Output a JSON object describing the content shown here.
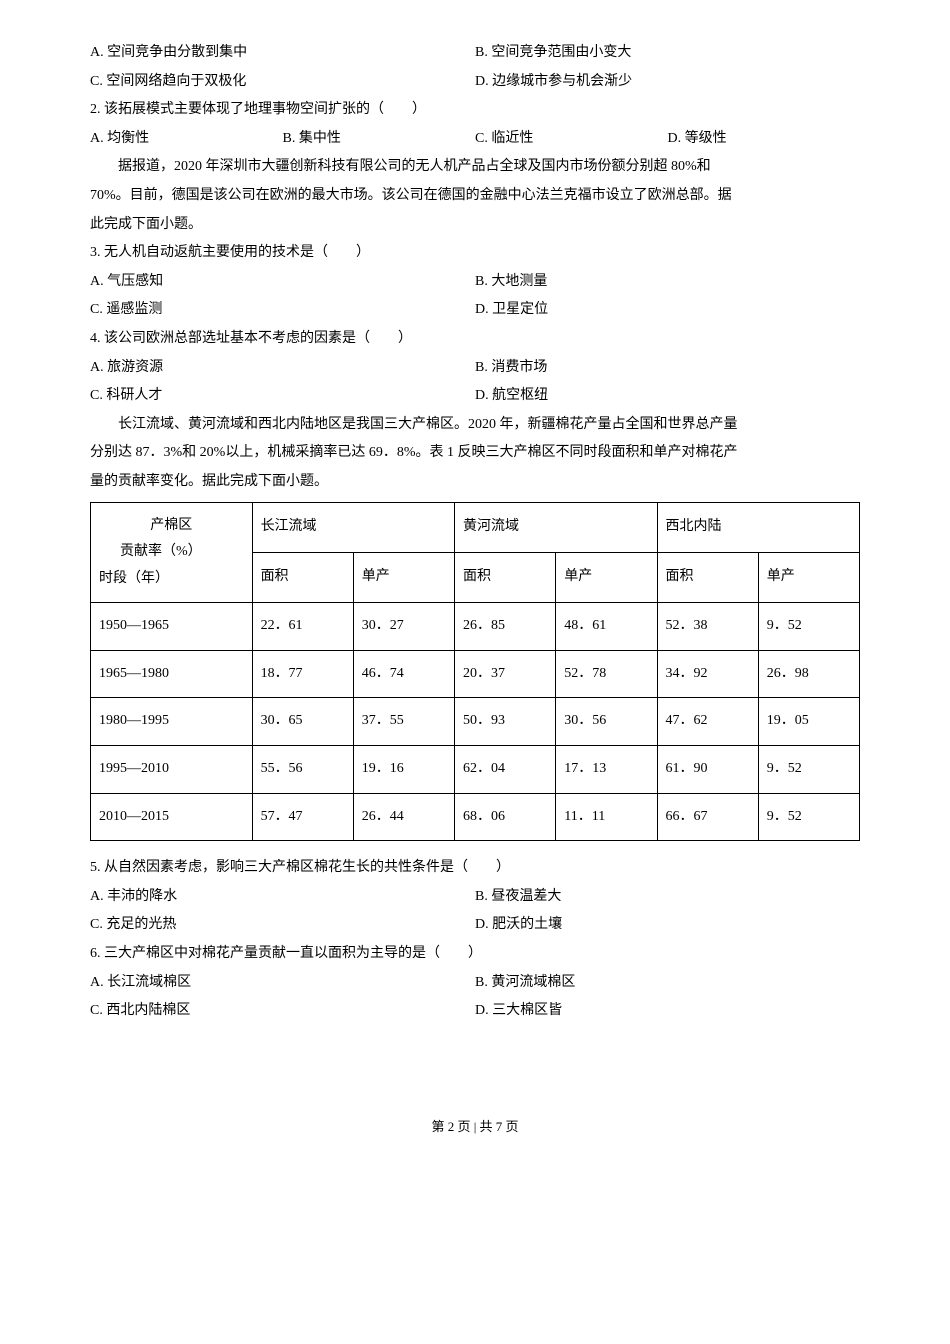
{
  "q1_options": {
    "A": "A. 空间竞争由分散到集中",
    "B": "B. 空间竞争范围由小变大",
    "C": "C. 空间网络趋向于双极化",
    "D": "D. 边缘城市参与机会渐少"
  },
  "q2": {
    "text": "2. 该拓展模式主要体现了地理事物空间扩张的（　　）",
    "A": "A. 均衡性",
    "B": "B. 集中性",
    "C": "C. 临近性",
    "D": "D. 等级性"
  },
  "passage1": {
    "line1": "据报道，2020 年深圳市大疆创新科技有限公司的无人机产品占全球及国内市场份额分别超 80%和",
    "line2": "70%。目前，德国是该公司在欧洲的最大市场。该公司在德国的金融中心法兰克福市设立了欧洲总部。据",
    "line3": "此完成下面小题。"
  },
  "q3": {
    "text": "3.  无人机自动返航主要使用的技术是（　　）",
    "A": "A.  气压感知",
    "B": "B.  大地测量",
    "C": "C.  遥感监测",
    "D": "D.  卫星定位"
  },
  "q4": {
    "text": "4.  该公司欧洲总部选址基本不考虑的因素是（　　）",
    "A": "A.  旅游资源",
    "B": "B.  消费市场",
    "C": "C.  科研人才",
    "D": "D.  航空枢纽"
  },
  "passage2": {
    "line1": "长江流域、黄河流域和西北内陆地区是我国三大产棉区。2020 年，新疆棉花产量占全国和世界总产量",
    "line2": "分别达 87．3%和 20%以上，机械采摘率已达 69．8%。表 1 反映三大产棉区不同时段面积和单产对棉花产",
    "line3": "量的贡献率变化。据此完成下面小题。"
  },
  "table": {
    "header": {
      "region_label": "产棉区",
      "contrib_label": "贡献率（%）",
      "period_label": "时段（年）",
      "r1": "长江流域",
      "r2": "黄河流域",
      "r3": "西北内陆",
      "area": "面积",
      "yield": "单产"
    },
    "rows": [
      {
        "period": "1950—1965",
        "v": [
          "22．61",
          "30．27",
          "26．85",
          "48．61",
          "52．38",
          "9．52"
        ]
      },
      {
        "period": "1965—1980",
        "v": [
          "18．77",
          "46．74",
          "20．37",
          "52．78",
          "34．92",
          "26．98"
        ]
      },
      {
        "period": "1980—1995",
        "v": [
          "30．65",
          "37．55",
          "50．93",
          "30．56",
          "47．62",
          "19．05"
        ]
      },
      {
        "period": "1995—2010",
        "v": [
          "55．56",
          "19．16",
          "62．04",
          "17．13",
          "61．90",
          "9．52"
        ]
      },
      {
        "period": "2010—2015",
        "v": [
          "57．47",
          "26．44",
          "68．06",
          "11．11",
          "66．67",
          "9．52"
        ]
      }
    ]
  },
  "q5": {
    "text": "5.  从自然因素考虑，影响三大产棉区棉花生长的共性条件是（　　）",
    "A": "A.  丰沛的降水",
    "B": "B.  昼夜温差大",
    "C": "C.  充足的光热",
    "D": "D.  肥沃的土壤"
  },
  "q6": {
    "text": "6.  三大产棉区中对棉花产量贡献一直以面积为主导的是（　　）",
    "A": "A.  长江流域棉区",
    "B": "B.  黄河流域棉区",
    "C": "C.  西北内陆棉区",
    "D": "D.  三大棉区皆"
  },
  "footer": "第 2 页 | 共 7 页"
}
